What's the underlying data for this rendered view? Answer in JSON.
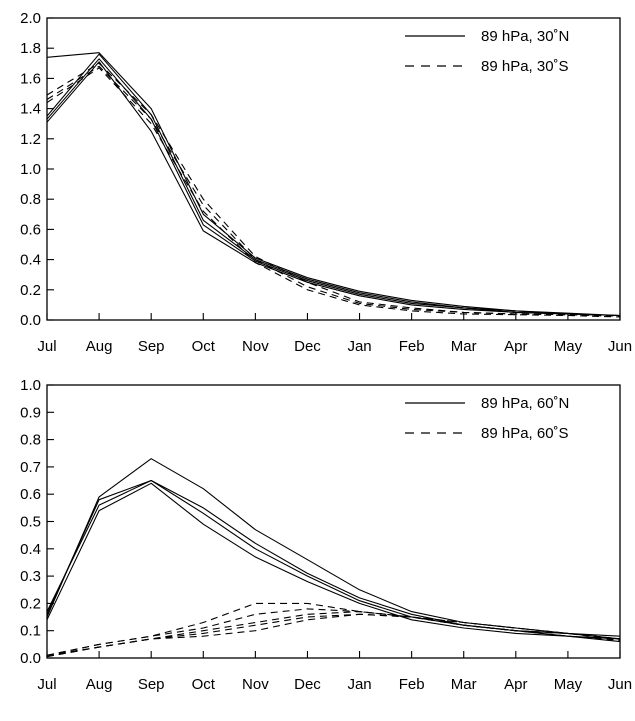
{
  "chart_data": [
    {
      "type": "line",
      "categories": [
        "Jul",
        "Aug",
        "Sep",
        "Oct",
        "Nov",
        "Dec",
        "Jan",
        "Feb",
        "Mar",
        "Apr",
        "May",
        "Jun"
      ],
      "ylim": [
        0,
        2.0
      ],
      "yticks": [
        "0.0",
        "0.2",
        "0.4",
        "0.6",
        "0.8",
        "1.0",
        "1.2",
        "1.4",
        "1.6",
        "1.8",
        "2.0"
      ],
      "ytick_values": [
        0,
        0.2,
        0.4,
        0.6,
        0.8,
        1.0,
        1.2,
        1.4,
        1.6,
        1.8,
        2.0
      ],
      "legend": {
        "placement": "top-right",
        "entries": [
          {
            "label": "89 hPa, 30˚N",
            "style": "solid"
          },
          {
            "label": "89 hPa, 30˚S",
            "style": "dashed"
          }
        ]
      },
      "series": [
        {
          "style": "solid",
          "values": [
            1.74,
            1.77,
            1.4,
            0.7,
            0.41,
            0.28,
            0.19,
            0.13,
            0.09,
            0.06,
            0.045,
            0.03
          ]
        },
        {
          "style": "solid",
          "values": [
            1.35,
            1.76,
            1.36,
            0.66,
            0.4,
            0.27,
            0.18,
            0.12,
            0.08,
            0.06,
            0.04,
            0.03
          ]
        },
        {
          "style": "solid",
          "values": [
            1.33,
            1.73,
            1.33,
            0.63,
            0.39,
            0.26,
            0.17,
            0.11,
            0.08,
            0.05,
            0.04,
            0.03
          ]
        },
        {
          "style": "solid",
          "values": [
            1.31,
            1.71,
            1.25,
            0.59,
            0.38,
            0.25,
            0.16,
            0.1,
            0.07,
            0.05,
            0.04,
            0.03
          ]
        },
        {
          "style": "dashed",
          "values": [
            1.49,
            1.7,
            1.36,
            0.8,
            0.42,
            0.25,
            0.12,
            0.08,
            0.05,
            0.04,
            0.035,
            0.025
          ]
        },
        {
          "style": "dashed",
          "values": [
            1.46,
            1.68,
            1.33,
            0.76,
            0.4,
            0.22,
            0.11,
            0.07,
            0.05,
            0.04,
            0.035,
            0.025
          ]
        },
        {
          "style": "dashed",
          "values": [
            1.44,
            1.67,
            1.3,
            0.72,
            0.38,
            0.2,
            0.1,
            0.06,
            0.04,
            0.035,
            0.03,
            0.02
          ]
        }
      ]
    },
    {
      "type": "line",
      "categories": [
        "Jul",
        "Aug",
        "Sep",
        "Oct",
        "Nov",
        "Dec",
        "Jan",
        "Feb",
        "Mar",
        "Apr",
        "May",
        "Jun"
      ],
      "ylim": [
        0,
        1.0
      ],
      "yticks": [
        "0.0",
        "0.1",
        "0.2",
        "0.3",
        "0.4",
        "0.5",
        "0.6",
        "0.7",
        "0.8",
        "0.9",
        "1.0"
      ],
      "ytick_values": [
        0,
        0.1,
        0.2,
        0.3,
        0.4,
        0.5,
        0.6,
        0.7,
        0.8,
        0.9,
        1.0
      ],
      "legend": {
        "placement": "top-right",
        "entries": [
          {
            "label": "89 hPa, 60˚N",
            "style": "solid"
          },
          {
            "label": "89 hPa, 60˚S",
            "style": "dashed"
          }
        ]
      },
      "series": [
        {
          "style": "solid",
          "values": [
            0.15,
            0.59,
            0.73,
            0.62,
            0.47,
            0.36,
            0.25,
            0.17,
            0.13,
            0.11,
            0.09,
            0.08
          ]
        },
        {
          "style": "solid",
          "values": [
            0.16,
            0.58,
            0.65,
            0.55,
            0.42,
            0.31,
            0.22,
            0.16,
            0.12,
            0.1,
            0.09,
            0.07
          ]
        },
        {
          "style": "solid",
          "values": [
            0.17,
            0.56,
            0.65,
            0.53,
            0.4,
            0.3,
            0.21,
            0.15,
            0.12,
            0.1,
            0.08,
            0.07
          ]
        },
        {
          "style": "solid",
          "values": [
            0.14,
            0.54,
            0.64,
            0.49,
            0.37,
            0.28,
            0.2,
            0.14,
            0.11,
            0.09,
            0.08,
            0.06
          ]
        },
        {
          "style": "dashed",
          "values": [
            0.01,
            0.05,
            0.08,
            0.13,
            0.2,
            0.2,
            0.17,
            0.15,
            0.13,
            0.11,
            0.09,
            0.07
          ]
        },
        {
          "style": "dashed",
          "values": [
            0.01,
            0.05,
            0.08,
            0.11,
            0.16,
            0.18,
            0.17,
            0.15,
            0.13,
            0.11,
            0.09,
            0.07
          ]
        },
        {
          "style": "dashed",
          "values": [
            0.005,
            0.04,
            0.07,
            0.1,
            0.13,
            0.16,
            0.17,
            0.15,
            0.12,
            0.1,
            0.09,
            0.07
          ]
        },
        {
          "style": "dashed",
          "values": [
            0.005,
            0.04,
            0.07,
            0.09,
            0.12,
            0.15,
            0.16,
            0.15,
            0.12,
            0.1,
            0.09,
            0.065
          ]
        },
        {
          "style": "dashed",
          "values": [
            0.01,
            0.04,
            0.07,
            0.08,
            0.1,
            0.14,
            0.16,
            0.15,
            0.12,
            0.1,
            0.08,
            0.065
          ]
        }
      ]
    }
  ]
}
